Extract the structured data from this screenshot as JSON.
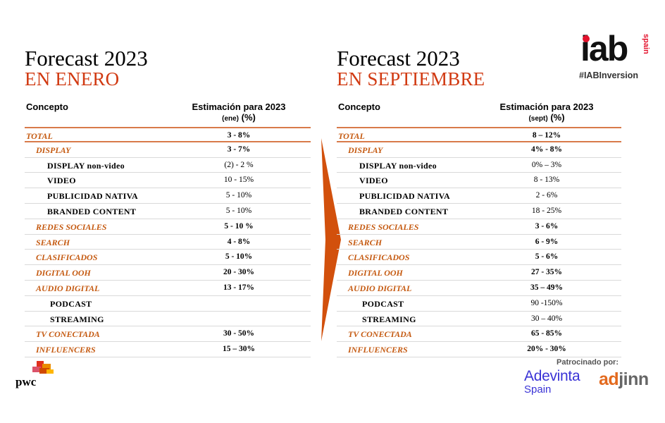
{
  "left": {
    "title": "Forecast 2023",
    "subtitle": "EN ENERO",
    "header_concept": "Concepto",
    "header_est": "Estimación para 2023",
    "header_est_sub": "(ene)",
    "header_pct": "(%)",
    "rows": [
      {
        "label": "TOTAL",
        "value": "3 - 8%"
      },
      {
        "label": "DISPLAY",
        "value": "3 - 7%"
      },
      {
        "label": "DISPLAY non-video",
        "value": "(2) - 2 %"
      },
      {
        "label": "VIDEO",
        "value": "10 - 15%"
      },
      {
        "label": "PUBLICIDAD NATIVA",
        "value": "5 - 10%"
      },
      {
        "label": "BRANDED  CONTENT",
        "value": "5 - 10%"
      },
      {
        "label": "REDES SOCIALES",
        "value": "5 - 10 %"
      },
      {
        "label": "SEARCH",
        "value": "4 - 8%"
      },
      {
        "label": "CLASIFICADOS",
        "value": "5 - 10%"
      },
      {
        "label": "DIGITAL OOH",
        "value": "20 - 30%"
      },
      {
        "label": "AUDIO DIGITAL",
        "value": "13 - 17%"
      },
      {
        "label": "PODCAST",
        "value": ""
      },
      {
        "label": "STREAMING",
        "value": ""
      },
      {
        "label": "TV CONECTADA",
        "value": "30 - 50%"
      },
      {
        "label": "INFLUENCERS",
        "value": "15 – 30%"
      }
    ]
  },
  "right": {
    "title": "Forecast 2023",
    "subtitle": "EN SEPTIEMBRE",
    "header_concept": "Concepto",
    "header_est": "Estimación para 2023",
    "header_est_sub": "(sept)",
    "header_pct": "(%)",
    "rows": [
      {
        "label": "TOTAL",
        "value": "8 – 12%"
      },
      {
        "label": "DISPLAY",
        "value": "4% - 8%"
      },
      {
        "label": "DISPLAY non-video",
        "value": "0% – 3%"
      },
      {
        "label": "VIDEO",
        "value": "8 - 13%"
      },
      {
        "label": "PUBLICIDAD NATIVA",
        "value": "2 - 6%"
      },
      {
        "label": "BRANDED  CONTENT",
        "value": "18 - 25%"
      },
      {
        "label": "REDES SOCIALES",
        "value": "3 - 6%"
      },
      {
        "label": "SEARCH",
        "value": "6 - 9%"
      },
      {
        "label": "CLASIFICADOS",
        "value": "5 - 6%"
      },
      {
        "label": "DIGITAL OOH",
        "value": "27 - 35%"
      },
      {
        "label": "AUDIO DIGITAL",
        "value": "35 – 49%"
      },
      {
        "label": "PODCAST",
        "value": "90 -150%"
      },
      {
        "label": "STREAMING",
        "value": "30 – 40%"
      },
      {
        "label": "TV CONECTADA",
        "value": "65 - 85%"
      },
      {
        "label": "INFLUENCERS",
        "value": "20% - 30%"
      }
    ]
  },
  "logos": {
    "iab_word": "iab",
    "iab_country": "spain",
    "hashtag": "#IABInversion",
    "pwc": "pwc",
    "sponsored_by": "Patrocinado por:",
    "adevinta_name": "Adevinta",
    "adevinta_country": "Spain",
    "adjinn_ad": "ad",
    "adjinn_rest": "jinn"
  },
  "colors": {
    "accent_red": "#d13a12",
    "category_orange": "#c55a11",
    "arrow": "#d2500c",
    "iab_red": "#e3122c",
    "adevinta_blue": "#3a33d6",
    "adjinn_orange": "#e36a1e"
  },
  "icons": [
    "chevron-arrow-right",
    "iab-logo",
    "pwc-logo",
    "adevinta-logo",
    "adjinn-logo"
  ]
}
